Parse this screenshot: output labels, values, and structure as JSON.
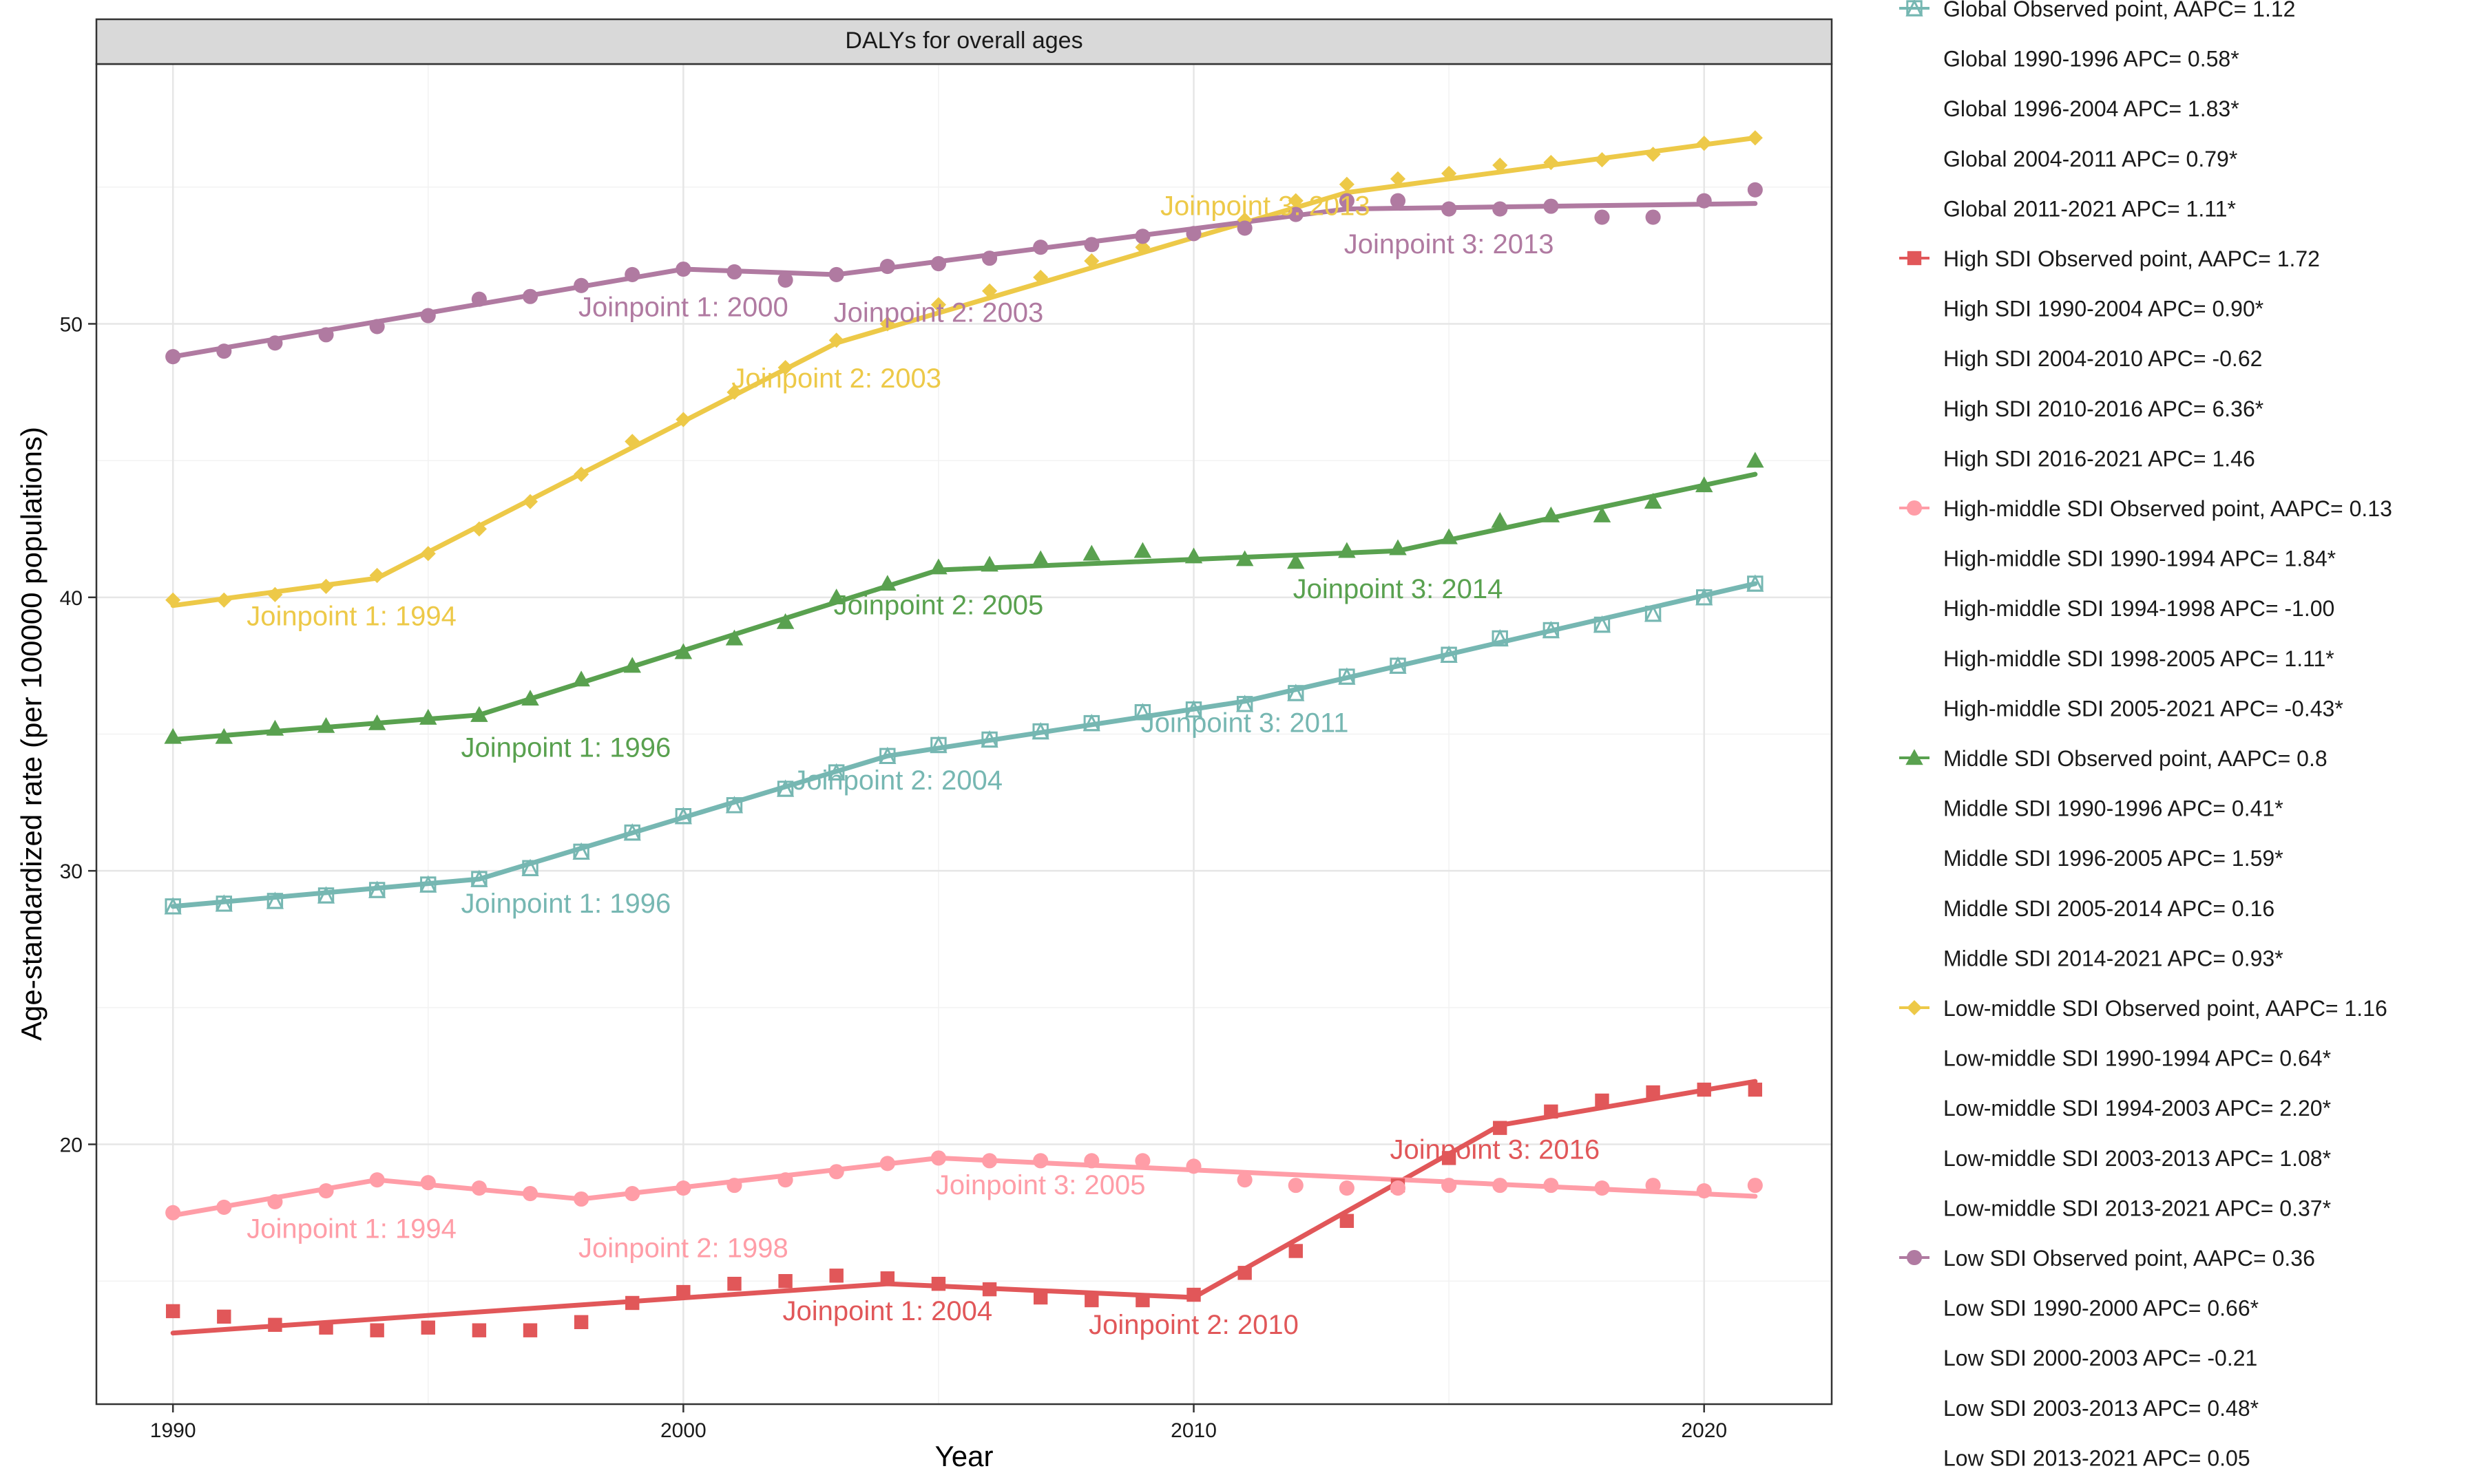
{
  "chart_data": {
    "type": "line",
    "title": "DALYs for overall ages",
    "xlabel": "Year",
    "ylabel": "Age-standardized rate (per 100000 populations)",
    "xlim": [
      1988.5,
      2022.5
    ],
    "ylim": [
      10.5,
      59.5
    ],
    "x_ticks": [
      1990,
      2000,
      2010,
      2020
    ],
    "y_ticks": [
      20,
      30,
      40,
      50
    ],
    "grid": true,
    "legend_position": "right",
    "years": [
      1990,
      1991,
      1992,
      1993,
      1994,
      1995,
      1996,
      1997,
      1998,
      1999,
      2000,
      2001,
      2002,
      2003,
      2004,
      2005,
      2006,
      2007,
      2008,
      2009,
      2010,
      2011,
      2012,
      2013,
      2014,
      2015,
      2016,
      2017,
      2018,
      2019,
      2020,
      2021
    ],
    "series": [
      {
        "name": "Global",
        "color": "#76b7b2",
        "marker": "square-triangle",
        "observed_label": "Global Observed point, AAPC= 1.12",
        "segment_labels": [
          "Global 1990-1996 APC= 0.58*",
          "Global 1996-2004 APC= 1.83*",
          "Global 2004-2011 APC= 0.79*",
          "Global 2011-2021 APC= 1.11*"
        ],
        "observed": [
          28.7,
          28.8,
          28.9,
          29.1,
          29.3,
          29.5,
          29.7,
          30.1,
          30.7,
          31.4,
          32.0,
          32.4,
          33.0,
          33.6,
          34.2,
          34.6,
          34.8,
          35.1,
          35.4,
          35.8,
          35.9,
          36.1,
          36.5,
          37.1,
          37.5,
          37.9,
          38.5,
          38.8,
          39.0,
          39.4,
          40.0,
          40.5
        ],
        "fit": [
          [
            1990,
            28.7
          ],
          [
            1996,
            29.7
          ],
          [
            2004,
            34.2
          ],
          [
            2011,
            36.2
          ],
          [
            2021,
            40.5
          ]
        ],
        "joinpoint_labels": [
          {
            "x": 1997.7,
            "y": 28.8,
            "text": "Joinpoint 1: 1996"
          },
          {
            "x": 2004.2,
            "y": 33.3,
            "text": "Joinpoint 2: 2004"
          },
          {
            "x": 2011.0,
            "y": 35.4,
            "text": "Joinpoint 3: 2011"
          }
        ]
      },
      {
        "name": "High SDI",
        "color": "#e15759",
        "marker": "square",
        "observed_label": "High SDI Observed point, AAPC= 1.72",
        "segment_labels": [
          "High SDI 1990-2004 APC= 0.90*",
          "High SDI 2004-2010 APC= -0.62",
          "High SDI 2010-2016 APC= 6.36*",
          "High SDI 2016-2021 APC= 1.46"
        ],
        "observed": [
          13.9,
          13.7,
          13.4,
          13.3,
          13.2,
          13.3,
          13.2,
          13.2,
          13.5,
          14.2,
          14.6,
          14.9,
          15.0,
          15.2,
          15.1,
          14.9,
          14.7,
          14.4,
          14.3,
          14.3,
          14.5,
          15.3,
          16.1,
          17.2,
          18.5,
          19.5,
          20.6,
          21.2,
          21.6,
          21.9,
          22.0,
          22.0
        ],
        "fit": [
          [
            1990,
            13.1
          ],
          [
            2004,
            14.9
          ],
          [
            2010,
            14.4
          ],
          [
            2016,
            20.7
          ],
          [
            2021,
            22.3
          ]
        ],
        "joinpoint_labels": [
          {
            "x": 2004.0,
            "y": 13.9,
            "text": "Joinpoint 1: 2004"
          },
          {
            "x": 2010.0,
            "y": 13.4,
            "text": "Joinpoint 2: 2010"
          },
          {
            "x": 2015.9,
            "y": 19.8,
            "text": "Joinpoint 3: 2016"
          }
        ]
      },
      {
        "name": "High-middle SDI",
        "color": "#ff9da7",
        "marker": "circle",
        "observed_label": "High-middle SDI Observed point, AAPC= 0.13",
        "segment_labels": [
          "High-middle SDI 1990-1994 APC= 1.84*",
          "High-middle SDI 1994-1998 APC= -1.00",
          "High-middle SDI 1998-2005 APC= 1.11*",
          "High-middle SDI 2005-2021 APC= -0.43*"
        ],
        "observed": [
          17.5,
          17.7,
          17.9,
          18.3,
          18.7,
          18.6,
          18.4,
          18.2,
          18.0,
          18.2,
          18.4,
          18.5,
          18.7,
          19.0,
          19.3,
          19.5,
          19.4,
          19.4,
          19.4,
          19.4,
          19.2,
          18.7,
          18.5,
          18.4,
          18.4,
          18.5,
          18.5,
          18.5,
          18.4,
          18.5,
          18.3,
          18.5
        ],
        "fit": [
          [
            1990,
            17.4
          ],
          [
            1994,
            18.7
          ],
          [
            1998,
            18.0
          ],
          [
            2005,
            19.5
          ],
          [
            2021,
            18.1
          ]
        ],
        "joinpoint_labels": [
          {
            "x": 1993.5,
            "y": 16.9,
            "text": "Joinpoint 1: 1994"
          },
          {
            "x": 2000.0,
            "y": 16.2,
            "text": "Joinpoint 2: 1998"
          },
          {
            "x": 2007.0,
            "y": 18.5,
            "text": "Joinpoint 3: 2005"
          }
        ]
      },
      {
        "name": "Middle SDI",
        "color": "#59a14f",
        "marker": "triangle",
        "observed_label": "Middle SDI Observed point, AAPC= 0.8",
        "segment_labels": [
          "Middle SDI 1990-1996 APC= 0.41*",
          "Middle SDI 1996-2005 APC= 1.59*",
          "Middle SDI 2005-2014 APC= 0.16",
          "Middle SDI 2014-2021 APC= 0.93*"
        ],
        "observed": [
          34.9,
          34.9,
          35.2,
          35.3,
          35.4,
          35.6,
          35.7,
          36.3,
          37.0,
          37.5,
          38.0,
          38.5,
          39.1,
          40.0,
          40.5,
          41.1,
          41.2,
          41.4,
          41.6,
          41.7,
          41.5,
          41.4,
          41.3,
          41.7,
          41.8,
          42.2,
          42.8,
          43.0,
          43.0,
          43.5,
          44.1,
          45.0
        ],
        "fit": [
          [
            1990,
            34.8
          ],
          [
            1996,
            35.7
          ],
          [
            2005,
            41.0
          ],
          [
            2014,
            41.7
          ],
          [
            2021,
            44.5
          ]
        ],
        "joinpoint_labels": [
          {
            "x": 1997.7,
            "y": 34.5,
            "text": "Joinpoint 1: 1996"
          },
          {
            "x": 2005.0,
            "y": 39.7,
            "text": "Joinpoint 2: 2005"
          },
          {
            "x": 2014.0,
            "y": 40.3,
            "text": "Joinpoint 3: 2014"
          }
        ]
      },
      {
        "name": "Low-middle SDI",
        "color": "#edc948",
        "marker": "diamond",
        "observed_label": "Low-middle SDI Observed point, AAPC= 1.16",
        "segment_labels": [
          "Low-middle SDI 1990-1994 APC= 0.64*",
          "Low-middle SDI 1994-2003 APC= 2.20*",
          "Low-middle SDI 2003-2013 APC= 1.08*",
          "Low-middle SDI 2013-2021 APC= 0.37*"
        ],
        "observed": [
          39.9,
          39.9,
          40.1,
          40.4,
          40.8,
          41.6,
          42.5,
          43.5,
          44.5,
          45.7,
          46.5,
          47.5,
          48.4,
          49.4,
          50.0,
          50.7,
          51.2,
          51.7,
          52.3,
          52.8,
          53.3,
          53.8,
          54.5,
          55.1,
          55.3,
          55.5,
          55.8,
          55.9,
          56.0,
          56.2,
          56.6,
          56.8
        ],
        "fit": [
          [
            1990,
            39.7
          ],
          [
            1994,
            40.7
          ],
          [
            2003,
            49.3
          ],
          [
            2013,
            54.8
          ],
          [
            2021,
            56.8
          ]
        ],
        "joinpoint_labels": [
          {
            "x": 1993.5,
            "y": 39.3,
            "text": "Joinpoint 1: 1994"
          },
          {
            "x": 2003.0,
            "y": 48.0,
            "text": "Joinpoint 2: 2003"
          },
          {
            "x": 2011.4,
            "y": 54.3,
            "text": "Joinpoint 3: 2013"
          }
        ]
      },
      {
        "name": "Low SDI",
        "color": "#b07aa1",
        "marker": "circle",
        "observed_label": "Low SDI Observed point, AAPC= 0.36",
        "segment_labels": [
          "Low SDI 1990-2000 APC= 0.66*",
          "Low SDI 2000-2003 APC= -0.21",
          "Low SDI 2003-2013 APC= 0.48*",
          "Low SDI 2013-2021 APC= 0.05"
        ],
        "observed": [
          48.8,
          49.0,
          49.3,
          49.6,
          49.9,
          50.3,
          50.9,
          51.0,
          51.4,
          51.8,
          52.0,
          51.9,
          51.6,
          51.8,
          52.1,
          52.2,
          52.4,
          52.8,
          52.9,
          53.2,
          53.3,
          53.5,
          54.0,
          54.5,
          54.5,
          54.2,
          54.2,
          54.3,
          53.9,
          53.9,
          54.5,
          54.9
        ],
        "fit": [
          [
            1990,
            48.8
          ],
          [
            2000,
            52.0
          ],
          [
            2003,
            51.8
          ],
          [
            2013,
            54.2
          ],
          [
            2021,
            54.4
          ]
        ],
        "joinpoint_labels": [
          {
            "x": 2000.0,
            "y": 50.6,
            "text": "Joinpoint 1: 2000"
          },
          {
            "x": 2005.0,
            "y": 50.4,
            "text": "Joinpoint 2: 2003"
          },
          {
            "x": 2015.0,
            "y": 52.9,
            "text": "Joinpoint 3: 2013"
          }
        ]
      }
    ]
  }
}
